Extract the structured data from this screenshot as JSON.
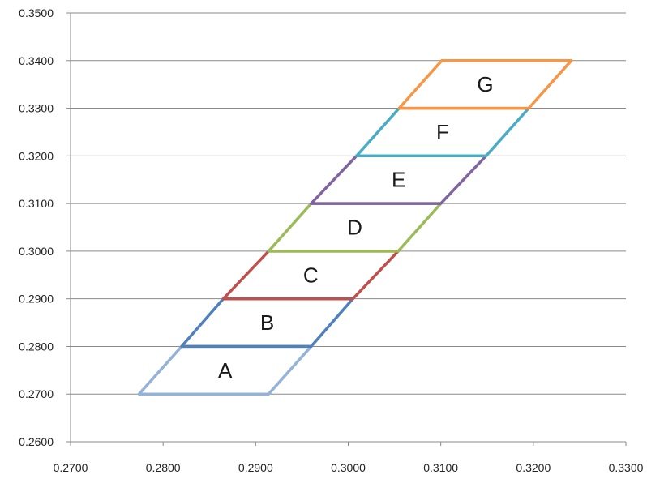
{
  "chart_data": {
    "type": "line",
    "title": "",
    "xlabel": "",
    "ylabel": "",
    "xlim": [
      0.27,
      0.33
    ],
    "ylim": [
      0.26,
      0.35
    ],
    "grid": {
      "horizontal": true,
      "vertical": false
    },
    "x_ticks": [
      "0.2700",
      "0.2800",
      "0.2900",
      "0.3000",
      "0.3100",
      "0.3200",
      "0.3300"
    ],
    "y_ticks": [
      "0.2600",
      "0.2700",
      "0.2800",
      "0.2900",
      "0.3000",
      "0.3100",
      "0.3200",
      "0.3300",
      "0.3400",
      "0.3500"
    ],
    "x_tick_values": [
      0.27,
      0.28,
      0.29,
      0.3,
      0.31,
      0.32,
      0.33
    ],
    "y_tick_values": [
      0.26,
      0.27,
      0.28,
      0.29,
      0.3,
      0.31,
      0.32,
      0.33,
      0.34,
      0.35
    ],
    "regions": [
      {
        "label": "A",
        "color": "#95b3d7",
        "points": [
          [
            0.2774,
            0.27
          ],
          [
            0.2914,
            0.27
          ],
          [
            0.296,
            0.28
          ],
          [
            0.282,
            0.28
          ]
        ]
      },
      {
        "label": "B",
        "color": "#4f81bd",
        "points": [
          [
            0.282,
            0.28
          ],
          [
            0.296,
            0.28
          ],
          [
            0.3005,
            0.29
          ],
          [
            0.2865,
            0.29
          ]
        ]
      },
      {
        "label": "C",
        "color": "#c0504d",
        "points": [
          [
            0.2865,
            0.29
          ],
          [
            0.3005,
            0.29
          ],
          [
            0.3054,
            0.3
          ],
          [
            0.2914,
            0.3
          ]
        ]
      },
      {
        "label": "D",
        "color": "#9bbb59",
        "points": [
          [
            0.2914,
            0.3
          ],
          [
            0.3054,
            0.3
          ],
          [
            0.31,
            0.31
          ],
          [
            0.296,
            0.31
          ]
        ]
      },
      {
        "label": "E",
        "color": "#8064a2",
        "points": [
          [
            0.296,
            0.31
          ],
          [
            0.31,
            0.31
          ],
          [
            0.3149,
            0.32
          ],
          [
            0.3009,
            0.32
          ]
        ]
      },
      {
        "label": "F",
        "color": "#4bacc6",
        "points": [
          [
            0.3009,
            0.32
          ],
          [
            0.3149,
            0.32
          ],
          [
            0.3195,
            0.33
          ],
          [
            0.3055,
            0.33
          ]
        ]
      },
      {
        "label": "G",
        "color": "#f79646",
        "points": [
          [
            0.3055,
            0.33
          ],
          [
            0.3195,
            0.33
          ],
          [
            0.3241,
            0.34
          ],
          [
            0.3101,
            0.34
          ]
        ]
      }
    ]
  }
}
